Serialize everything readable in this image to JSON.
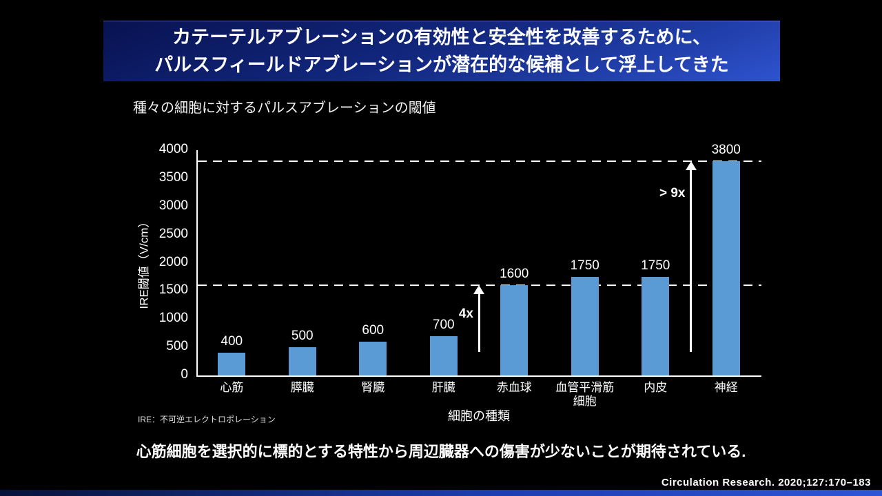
{
  "slide": {
    "title": {
      "line1": "カテーテルアブレーションの有効性と安全性を改善するために、",
      "line2": "パルスフィールドアブレーションが潜在的な候補として浮上してきた"
    },
    "subtitle": "種々の細胞に対するパルスアブレーションの閾値",
    "footnote": "IRE：不可逆エレクトロポレーション",
    "message": "心筋細胞を選択的に標的とする特性から周辺臓器への傷害が少ないことが期待されている.",
    "citation": "Circulation Research. 2020;127:170–183"
  },
  "colors": {
    "background": "#000000",
    "banner_top": "#081250",
    "banner_bottom": "#2e53cf",
    "bar": "#5B9BD5",
    "text": "#ffffff"
  },
  "chart_data": {
    "type": "bar",
    "title": "種々の細胞に対するパルスアブレーションの閾値",
    "categories": [
      "心筋",
      "膵臓",
      "腎臓",
      "肝臓",
      "赤血球",
      "血管平滑筋\n細胞",
      "内皮",
      "神経"
    ],
    "values": [
      400,
      500,
      600,
      700,
      1600,
      1750,
      1750,
      3800
    ],
    "value_labels": [
      "400",
      "500",
      "600",
      "700",
      "1600",
      "1750",
      "1750",
      "3800"
    ],
    "xlabel": "細胞の種類",
    "ylabel": "IRE閾値（V/cm）",
    "ylim": [
      0,
      4000
    ],
    "yticks": [
      0,
      500,
      1000,
      1500,
      2000,
      2500,
      3000,
      3500,
      4000
    ],
    "thresholds": [
      1600,
      3800
    ],
    "bar_color": "#5B9BD5",
    "grid": false,
    "legend": false,
    "annotations": [
      {
        "label": "4x",
        "boundary": 4,
        "from": 420,
        "to": 1600,
        "label_value": 1060
      },
      {
        "label": "> 9x",
        "boundary": 7,
        "from": 420,
        "to": 3800,
        "label_value": 3200
      }
    ]
  }
}
